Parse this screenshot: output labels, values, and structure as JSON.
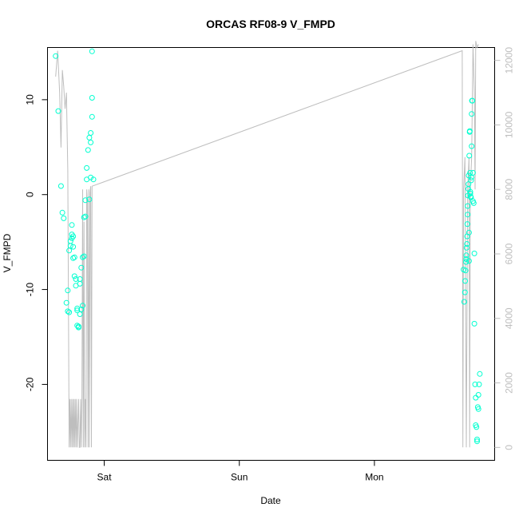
{
  "chart_data": {
    "type": "scatter",
    "title": "ORCAS RF08-9 V_FMPD",
    "xlabel": "Date",
    "ylabel": "V_FMPD",
    "x_ticks": [
      "Sat",
      "Sun",
      "Mon"
    ],
    "y_ticks": [
      -20,
      -10,
      0,
      10
    ],
    "ylim": [
      -28,
      15.5
    ],
    "y2_ticks": [
      0,
      2000,
      4000,
      6000,
      8000,
      10000,
      12000
    ],
    "y2lim": [
      -400,
      12400
    ],
    "xlim_days": [
      -0.42,
      2.89
    ],
    "x_tick_days": [
      0,
      1,
      2
    ],
    "colors": {
      "points": "#00ffd0",
      "secondary_line": "#bebebe",
      "axis": "#000000"
    },
    "series": [
      {
        "kind": "points",
        "x": [
          -0.36,
          -0.34,
          -0.32,
          -0.31,
          -0.3,
          -0.28,
          -0.27,
          -0.27,
          -0.26,
          -0.26,
          -0.25,
          -0.25,
          -0.24,
          -0.24,
          -0.24,
          -0.23,
          -0.23,
          -0.23,
          -0.22,
          -0.22,
          -0.21,
          -0.21,
          -0.2,
          -0.2,
          -0.2,
          -0.19,
          -0.19,
          -0.18,
          -0.18,
          -0.18,
          -0.17,
          -0.17,
          -0.16,
          -0.16,
          -0.15,
          -0.15,
          -0.14,
          -0.14,
          -0.13,
          -0.13,
          -0.12,
          -0.11,
          -0.11,
          -0.1,
          -0.1,
          -0.1,
          -0.09,
          -0.09,
          -0.09,
          -0.08,
          2.66,
          2.665,
          2.67,
          2.672,
          2.675,
          2.678,
          2.68,
          2.68,
          2.682,
          2.685,
          2.686,
          2.688,
          2.69,
          2.69,
          2.692,
          2.695,
          2.696,
          2.698,
          2.7,
          2.7,
          2.702,
          2.705,
          2.706,
          2.708,
          2.71,
          2.71,
          2.712,
          2.715,
          2.716,
          2.718,
          2.72,
          2.72,
          2.722,
          2.725,
          2.73,
          2.73,
          2.735,
          2.74,
          2.74,
          2.745,
          2.75,
          2.75,
          2.755,
          2.76,
          2.76,
          2.765,
          2.77,
          2.77,
          2.775,
          2.78
        ],
        "y": [
          14.6,
          8.8,
          0.9,
          -1.9,
          -2.5,
          -11.4,
          -12.3,
          -10.1,
          -12.4,
          -5.9,
          -5.4,
          -4.9,
          -4.6,
          -4.2,
          -3.2,
          -4.4,
          -5.5,
          -6.7,
          -6.6,
          -8.6,
          -8.9,
          -9.6,
          -12.0,
          -12.2,
          -13.8,
          -13.9,
          -14.0,
          -12.6,
          -9.4,
          -8.9,
          -7.7,
          -12.1,
          -11.7,
          -6.6,
          -6.5,
          -2.4,
          -2.3,
          -0.6,
          1.6,
          2.8,
          4.7,
          -0.5,
          6.0,
          6.5,
          5.5,
          1.8,
          8.2,
          10.2,
          15.1,
          1.6,
          -7.9,
          -11.3,
          -10.3,
          -9.1,
          -8.0,
          -7.1,
          -6.8,
          -6.4,
          -5.6,
          -5.2,
          -4.4,
          -3.1,
          -2.1,
          -1.2,
          -0.1,
          0.6,
          1.1,
          2.0,
          -7.0,
          -4.0,
          4.1,
          6.6,
          6.7,
          2.3,
          0.3,
          0.1,
          -0.2,
          -0.3,
          1.5,
          1.8,
          5.1,
          8.5,
          9.9,
          9.9,
          2.3,
          -0.7,
          -0.9,
          -6.2,
          -13.6,
          -20.0,
          -21.4,
          -24.3,
          -24.5,
          -25.8,
          -26.0,
          -22.4,
          -22.6,
          -21.1,
          -20.0,
          -18.9
        ]
      },
      {
        "kind": "line",
        "axis": "secondary",
        "x": [
          -0.36,
          -0.345,
          -0.33,
          -0.32,
          -0.31,
          -0.3,
          -0.29,
          -0.28,
          -0.27,
          -0.26,
          -0.255,
          -0.25,
          -0.245,
          -0.24,
          -0.235,
          -0.23,
          -0.225,
          -0.22,
          -0.215,
          -0.21,
          -0.205,
          -0.2,
          -0.19,
          -0.185,
          -0.18,
          -0.175,
          -0.17,
          -0.165,
          -0.16,
          -0.155,
          -0.15,
          -0.145,
          -0.14,
          -0.135,
          -0.13,
          -0.125,
          -0.12,
          -0.115,
          -0.11,
          -0.105,
          -0.1,
          -0.095,
          -0.09,
          2.65,
          2.655,
          2.66,
          2.67,
          2.68,
          2.69,
          2.7,
          2.705,
          2.71,
          2.72,
          2.73,
          2.74,
          2.745,
          2.75,
          2.76,
          2.77
        ],
        "y": [
          11500,
          12300,
          11000,
          9300,
          11700,
          11200,
          10500,
          11000,
          8600,
          0,
          1500,
          0,
          1500,
          0,
          1500,
          0,
          1500,
          0,
          1500,
          0,
          1500,
          0,
          1500,
          0,
          0,
          1500,
          0,
          1500,
          8000,
          0,
          7000,
          0,
          1500,
          0,
          8000,
          7600,
          0,
          8000,
          0,
          7900,
          8100,
          0,
          8100,
          12300,
          0,
          8000,
          9000,
          0,
          8000,
          9000,
          0,
          8000,
          9000,
          12500,
          11000,
          8000,
          12600,
          12400,
          12500
        ]
      }
    ]
  }
}
